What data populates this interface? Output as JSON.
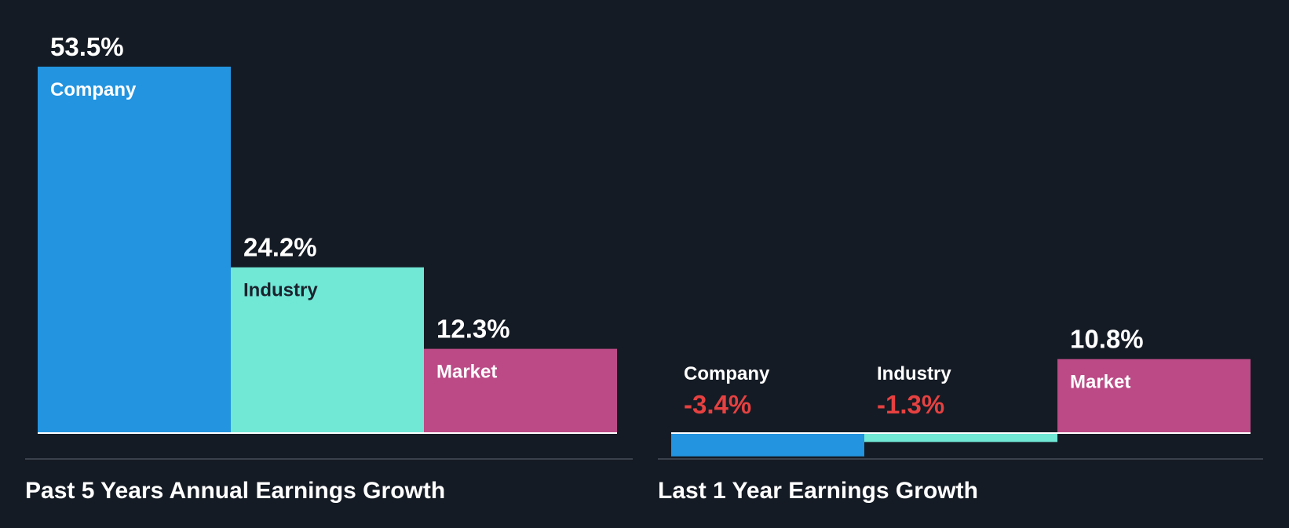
{
  "chart_data": [
    {
      "type": "bar",
      "title": "Past 5 Years Annual Earnings Growth",
      "unit": "%",
      "categories": [
        "Company",
        "Industry",
        "Market"
      ],
      "values": [
        53.5,
        24.2,
        12.3
      ],
      "value_labels": [
        "53.5%",
        "24.2%",
        "12.3%"
      ],
      "colors": [
        "#2394df",
        "#71e7d6",
        "#bb4a86"
      ],
      "label_colors": [
        "#ffffff",
        "#1b222d",
        "#ffffff"
      ],
      "xlabel": "",
      "ylabel": ""
    },
    {
      "type": "bar",
      "title": "Last 1 Year Earnings Growth",
      "unit": "%",
      "categories": [
        "Company",
        "Industry",
        "Market"
      ],
      "values": [
        -3.4,
        -1.3,
        10.8
      ],
      "value_labels": [
        "-3.4%",
        "-1.3%",
        "10.8%"
      ],
      "colors": [
        "#2394df",
        "#71e7d6",
        "#bb4a86"
      ],
      "label_colors": [
        "#ffffff",
        "#1b222d",
        "#ffffff"
      ],
      "xlabel": "",
      "ylabel": ""
    }
  ],
  "theme": {
    "background": "#151b24",
    "text": "#ffffff",
    "negative": "#e64141",
    "divider": "#3a414c"
  }
}
